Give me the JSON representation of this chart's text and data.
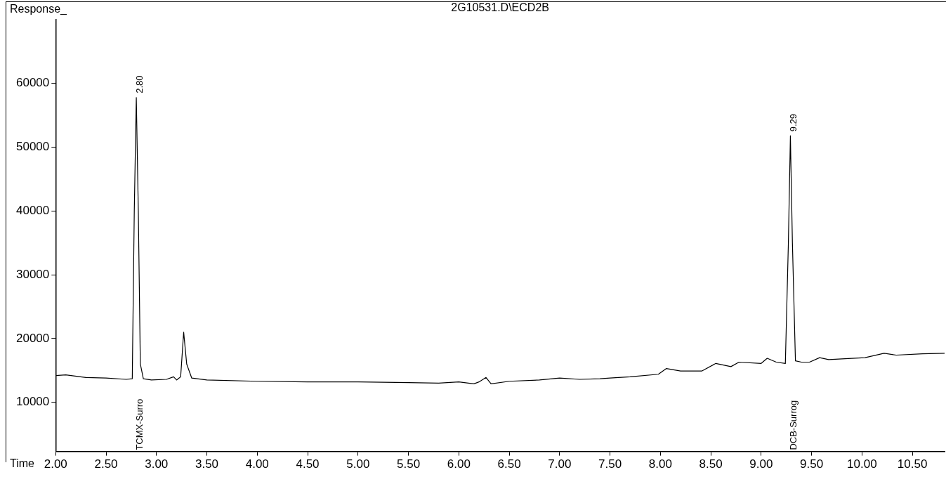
{
  "chart_data": {
    "type": "line",
    "title": "2G10531.D\\ECD2B",
    "xlabel": "Time",
    "ylabel": "Response_",
    "xlim": [
      2,
      10.82
    ],
    "ylim": [
      2300,
      70000
    ],
    "xticks": [
      {
        "value": 2,
        "label": "2.00"
      },
      {
        "value": 2.5,
        "label": "2.50"
      },
      {
        "value": 3,
        "label": "3.00"
      },
      {
        "value": 3.5,
        "label": "3.50"
      },
      {
        "value": 4,
        "label": "4.00"
      },
      {
        "value": 4.5,
        "label": "4.50"
      },
      {
        "value": 5,
        "label": "5.00"
      },
      {
        "value": 5.5,
        "label": "5.50"
      },
      {
        "value": 6,
        "label": "6.00"
      },
      {
        "value": 6.5,
        "label": "6.50"
      },
      {
        "value": 7,
        "label": "7.00"
      },
      {
        "value": 7.5,
        "label": "7.50"
      },
      {
        "value": 8,
        "label": "8.00"
      },
      {
        "value": 8.5,
        "label": "8.50"
      },
      {
        "value": 9,
        "label": "9.00"
      },
      {
        "value": 9.5,
        "label": "9.50"
      },
      {
        "value": 10,
        "label": "10.00"
      },
      {
        "value": 10.5,
        "label": "10.50"
      }
    ],
    "yticks": [
      10000,
      20000,
      30000,
      40000,
      50000,
      60000
    ],
    "grid": false,
    "legend": false,
    "marker": "none",
    "line_style": "solid",
    "series": [
      {
        "color": "#000000",
        "x": [
          2.0,
          2.1,
          2.3,
          2.5,
          2.7,
          2.76,
          2.78,
          2.8,
          2.82,
          2.84,
          2.87,
          2.95,
          3.1,
          3.17,
          3.2,
          3.24,
          3.27,
          3.3,
          3.35,
          3.5,
          4.0,
          4.5,
          5.0,
          5.5,
          5.8,
          6.0,
          6.15,
          6.2,
          6.27,
          6.32,
          6.5,
          6.8,
          7.0,
          7.2,
          7.4,
          7.5,
          7.7,
          7.98,
          8.06,
          8.2,
          8.41,
          8.55,
          8.7,
          8.78,
          9.0,
          9.06,
          9.15,
          9.24,
          9.27,
          9.29,
          9.31,
          9.34,
          9.4,
          9.48,
          9.58,
          9.67,
          10.03,
          10.22,
          10.34,
          10.6,
          10.82
        ],
        "values": [
          14200,
          14300,
          13900,
          13800,
          13600,
          13700,
          40000,
          57800,
          40000,
          16000,
          13700,
          13500,
          13600,
          14000,
          13500,
          14000,
          21000,
          16000,
          13800,
          13500,
          13300,
          13200,
          13200,
          13100,
          13000,
          13200,
          12900,
          13200,
          13900,
          12900,
          13300,
          13500,
          13800,
          13600,
          13700,
          13800,
          14000,
          14400,
          15300,
          14900,
          14900,
          16100,
          15600,
          16300,
          16100,
          16900,
          16300,
          16100,
          35000,
          51800,
          35000,
          16500,
          16300,
          16300,
          17000,
          16700,
          17000,
          17700,
          17400,
          17600,
          17700
        ]
      }
    ],
    "annotations": [
      {
        "text": "2.80",
        "x": 2.8,
        "y": 57800
      },
      "TCMX-Surro",
      {
        "text": "9.29",
        "x": 9.29,
        "y": 51800
      },
      "DCB-Surrog"
    ]
  }
}
